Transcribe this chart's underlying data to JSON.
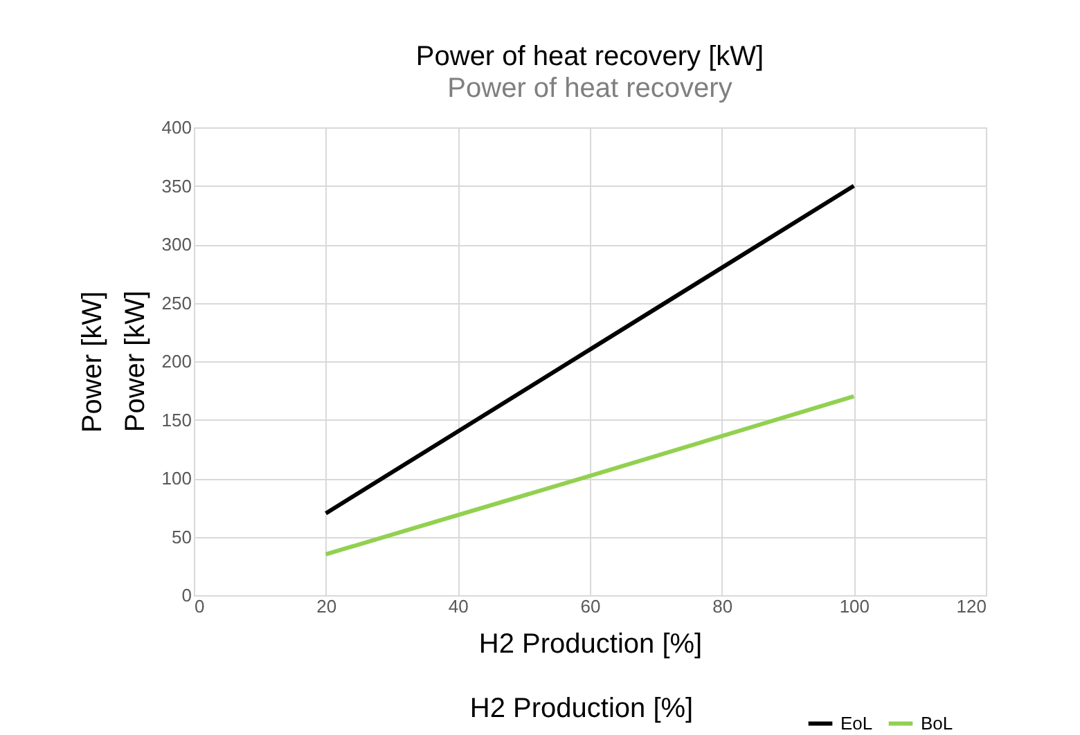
{
  "chart_data": {
    "type": "line",
    "title": "Power of heat recovery [kW]",
    "subtitle": "Power of heat recovery",
    "xlabel": "H2 Production [%]",
    "ylabel": "Power [kW]",
    "annotations": [
      "Power [kW]",
      "H2 Production [%]"
    ],
    "x": [
      20,
      60,
      100
    ],
    "series": [
      {
        "name": "EoL",
        "color": "#000000",
        "values": [
          70,
          210,
          350
        ]
      },
      {
        "name": "BoL",
        "color": "#92d050",
        "values": [
          35,
          102,
          170
        ]
      }
    ],
    "xlim": [
      0,
      120
    ],
    "xticks": [
      0,
      20,
      40,
      60,
      80,
      100,
      120
    ],
    "ylim": [
      0,
      400
    ],
    "yticks": [
      0,
      50,
      100,
      150,
      200,
      250,
      300,
      350,
      400
    ],
    "grid": true,
    "legend": "bottom right",
    "marker": "none",
    "line_style": "solid"
  }
}
